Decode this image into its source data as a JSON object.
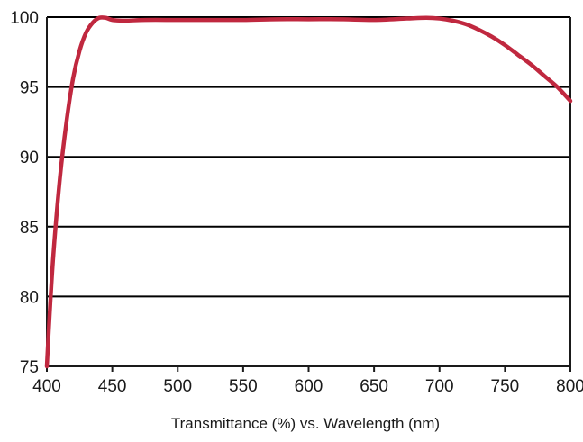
{
  "chart_data": {
    "type": "line",
    "title": "",
    "xlabel": "Transmittance (%) vs. Wavelength (nm)",
    "ylabel": "",
    "xlim": [
      400,
      800
    ],
    "ylim": [
      75,
      100
    ],
    "x_ticks": [
      400,
      450,
      500,
      550,
      600,
      650,
      700,
      750,
      800
    ],
    "y_ticks": [
      75,
      80,
      85,
      90,
      95,
      100
    ],
    "x_tick_labels": [
      "400",
      "450",
      "500",
      "550",
      "600",
      "650",
      "700",
      "750",
      "800"
    ],
    "y_tick_labels": [
      "75",
      "80",
      "85",
      "90",
      "95",
      "100"
    ],
    "grid": "horizontal",
    "legend": "none",
    "series": [
      {
        "color": "#c0283f",
        "points": [
          {
            "x": 400,
            "y": 75.0
          },
          {
            "x": 402,
            "y": 78.5
          },
          {
            "x": 405,
            "y": 83.0
          },
          {
            "x": 410,
            "y": 88.5
          },
          {
            "x": 415,
            "y": 92.5
          },
          {
            "x": 420,
            "y": 95.6
          },
          {
            "x": 425,
            "y": 97.6
          },
          {
            "x": 430,
            "y": 98.9
          },
          {
            "x": 435,
            "y": 99.6
          },
          {
            "x": 440,
            "y": 99.95
          },
          {
            "x": 445,
            "y": 99.95
          },
          {
            "x": 450,
            "y": 99.8
          },
          {
            "x": 460,
            "y": 99.75
          },
          {
            "x": 475,
            "y": 99.8
          },
          {
            "x": 500,
            "y": 99.8
          },
          {
            "x": 525,
            "y": 99.8
          },
          {
            "x": 550,
            "y": 99.8
          },
          {
            "x": 575,
            "y": 99.85
          },
          {
            "x": 600,
            "y": 99.85
          },
          {
            "x": 625,
            "y": 99.85
          },
          {
            "x": 650,
            "y": 99.8
          },
          {
            "x": 675,
            "y": 99.9
          },
          {
            "x": 690,
            "y": 99.95
          },
          {
            "x": 700,
            "y": 99.9
          },
          {
            "x": 710,
            "y": 99.75
          },
          {
            "x": 720,
            "y": 99.5
          },
          {
            "x": 730,
            "y": 99.1
          },
          {
            "x": 740,
            "y": 98.6
          },
          {
            "x": 750,
            "y": 98.0
          },
          {
            "x": 760,
            "y": 97.3
          },
          {
            "x": 770,
            "y": 96.6
          },
          {
            "x": 780,
            "y": 95.8
          },
          {
            "x": 790,
            "y": 95.0
          },
          {
            "x": 800,
            "y": 94.0
          }
        ]
      }
    ],
    "colors": {
      "line": "#c0283f",
      "grid": "#000000",
      "axis": "#1a1a1a",
      "text": "#1a1a1a"
    }
  }
}
